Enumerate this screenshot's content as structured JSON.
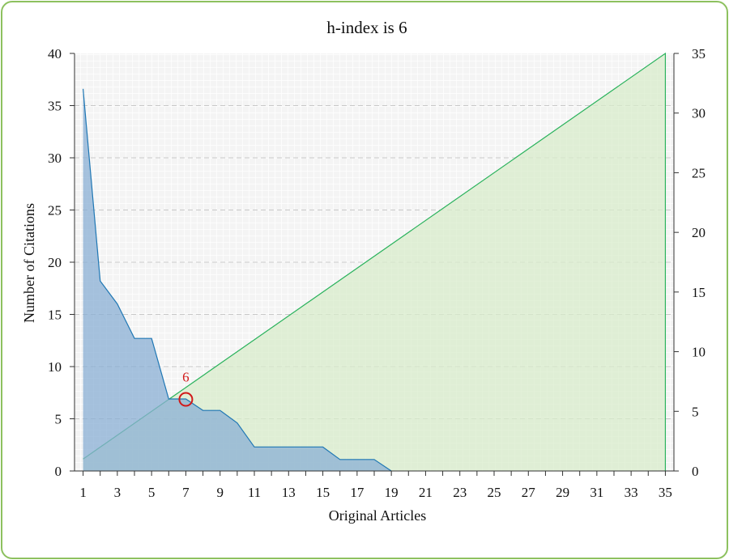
{
  "chart_data": {
    "type": "area",
    "title": "h-index is 6",
    "xlabel": "Original Articles",
    "ylabel": "Number of Citations",
    "xlim": [
      0.5,
      35.5
    ],
    "ylim": [
      0,
      40
    ],
    "y2lim": [
      0,
      35
    ],
    "x_ticks": [
      1,
      3,
      5,
      7,
      9,
      11,
      13,
      15,
      17,
      19,
      21,
      23,
      25,
      27,
      29,
      31,
      33,
      35
    ],
    "y_ticks": [
      0,
      5,
      10,
      15,
      20,
      25,
      30,
      35,
      40
    ],
    "y2_ticks": [
      0,
      5,
      10,
      15,
      20,
      25,
      30,
      35
    ],
    "grid": true,
    "series": [
      {
        "color": "#1f77b4",
        "fill": "#8aafd4",
        "axis": "left",
        "x": [
          1,
          2,
          3,
          4,
          5,
          6,
          7,
          8,
          9,
          10,
          11,
          12,
          13,
          14,
          15,
          16,
          17,
          18,
          19
        ],
        "values": [
          36.6,
          18.2,
          16,
          12.7,
          12.7,
          6.9,
          6.9,
          5.8,
          5.8,
          4.6,
          2.3,
          2.3,
          2.3,
          2.3,
          2.3,
          1.1,
          1.1,
          1.1,
          0
        ]
      },
      {
        "color": "#2ab25c",
        "fill": "#d8eccb",
        "axis": "right",
        "x": [
          1,
          35
        ],
        "values": [
          1,
          35
        ]
      }
    ],
    "annotations": [
      {
        "text": "6",
        "x": 7,
        "y": 6,
        "color": "#d11a1a"
      }
    ]
  }
}
